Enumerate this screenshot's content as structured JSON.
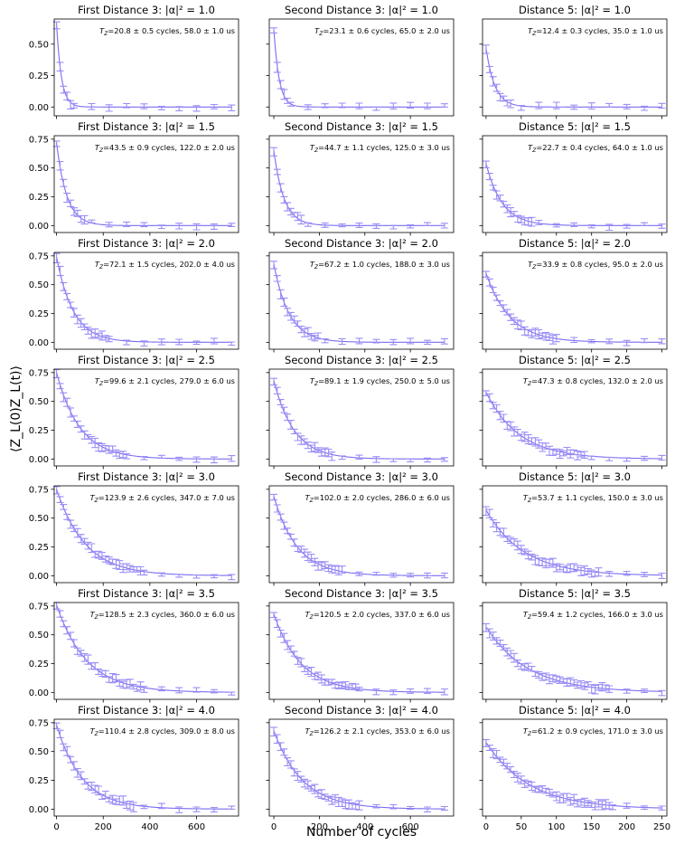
{
  "figure": {
    "ylabel": "⟨Z_L(0)Z_L(t)⟩",
    "xlabel": "Number of cycles",
    "colors": {
      "data": "#9a8ff5",
      "fit": "#7b6cf0",
      "axis": "#000000"
    }
  },
  "chart_data": {
    "type": "scatter",
    "columns": [
      {
        "prefix": "First Distance 3",
        "xlim": [
          -10,
          780
        ],
        "xticks": [
          0,
          200,
          400,
          600
        ],
        "xmax": 750
      },
      {
        "prefix": "Second Distance 3",
        "xlim": [
          -20,
          790
        ],
        "xticks": [
          0,
          200,
          400,
          600
        ],
        "xmax": 750
      },
      {
        "prefix": "Distance 5",
        "xlim": [
          -5,
          257
        ],
        "xticks": [
          0,
          50,
          100,
          150,
          200,
          250
        ],
        "xmax": 250
      }
    ],
    "rows": [
      {
        "alpha2": "1.0",
        "ylim": [
          -0.07,
          0.7
        ],
        "yticks": [
          "0.00",
          "0.25",
          "0.50"
        ],
        "ytick_values": [
          0,
          0.25,
          0.5
        ]
      },
      {
        "alpha2": "1.5",
        "ylim": [
          -0.06,
          0.78
        ],
        "yticks": [
          "0.00",
          "0.25",
          "0.50",
          "0.75"
        ],
        "ytick_values": [
          0,
          0.25,
          0.5,
          0.75
        ]
      },
      {
        "alpha2": "2.0",
        "ylim": [
          -0.06,
          0.78
        ],
        "yticks": [
          "0.00",
          "0.25",
          "0.50",
          "0.75"
        ],
        "ytick_values": [
          0,
          0.25,
          0.5,
          0.75
        ]
      },
      {
        "alpha2": "2.5",
        "ylim": [
          -0.06,
          0.78
        ],
        "yticks": [
          "0.00",
          "0.25",
          "0.50",
          "0.75"
        ],
        "ytick_values": [
          0,
          0.25,
          0.5,
          0.75
        ]
      },
      {
        "alpha2": "3.0",
        "ylim": [
          -0.06,
          0.78
        ],
        "yticks": [
          "0.00",
          "0.25",
          "0.50",
          "0.75"
        ],
        "ytick_values": [
          0,
          0.25,
          0.5,
          0.75
        ]
      },
      {
        "alpha2": "3.5",
        "ylim": [
          -0.06,
          0.78
        ],
        "yticks": [
          "0.00",
          "0.25",
          "0.50",
          "0.75"
        ],
        "ytick_values": [
          0,
          0.25,
          0.5,
          0.75
        ]
      },
      {
        "alpha2": "4.0",
        "ylim": [
          -0.06,
          0.78
        ],
        "yticks": [
          "0.00",
          "0.25",
          "0.50",
          "0.75"
        ],
        "ytick_values": [
          0,
          0.25,
          0.5,
          0.75
        ]
      }
    ],
    "panels": [
      [
        {
          "title": "First Distance 3: |α|² = 1.0",
          "annotation": "=20.8 ± 0.5 cycles, 58.0 ± 1.0 us",
          "a0": 0.66,
          "tau": 20.8
        },
        {
          "title": "Second Distance 3: |α|² = 1.0",
          "annotation": "=23.1 ± 0.6 cycles, 65.0 ± 2.0 us",
          "a0": 0.62,
          "tau": 23.1
        },
        {
          "title": "Distance 5: |α|² = 1.0",
          "annotation": "=12.4 ± 0.3 cycles, 35.0 ± 1.0 us",
          "a0": 0.47,
          "tau": 12.4
        }
      ],
      [
        {
          "title": "First Distance 3: |α|² = 1.5",
          "annotation": "=43.5 ± 0.9 cycles, 122.0 ± 2.0 us",
          "a0": 0.72,
          "tau": 43.5
        },
        {
          "title": "Second Distance 3: |α|² = 1.5",
          "annotation": "=44.7 ± 1.1 cycles, 125.0 ± 3.0 us",
          "a0": 0.65,
          "tau": 44.7
        },
        {
          "title": "Distance 5: |α|² = 1.5",
          "annotation": "=22.7 ± 0.4 cycles, 64.0 ± 1.0 us",
          "a0": 0.54,
          "tau": 22.7
        }
      ],
      [
        {
          "title": "First Distance 3: |α|² = 2.0",
          "annotation": "=72.1 ± 1.5 cycles, 202.0 ± 4.0 us",
          "a0": 0.74,
          "tau": 72.1
        },
        {
          "title": "Second Distance 3: |α|² = 2.0",
          "annotation": "=67.2 ± 1.0 cycles, 188.0 ± 3.0 us",
          "a0": 0.68,
          "tau": 67.2
        },
        {
          "title": "Distance 5: |α|² = 2.0",
          "annotation": "=33.9 ± 0.8 cycles, 95.0 ± 2.0 us",
          "a0": 0.6,
          "tau": 33.9
        }
      ],
      [
        {
          "title": "First Distance 3: |α|² = 2.5",
          "annotation": "=99.6 ± 2.1 cycles, 279.0 ± 6.0 us",
          "a0": 0.75,
          "tau": 99.6
        },
        {
          "title": "Second Distance 3: |α|² = 2.5",
          "annotation": "=89.1 ± 1.9 cycles, 250.0 ± 5.0 us",
          "a0": 0.68,
          "tau": 89.1
        },
        {
          "title": "Distance 5: |α|² = 2.5",
          "annotation": "=47.3 ± 0.8 cycles, 132.0 ± 2.0 us",
          "a0": 0.58,
          "tau": 47.3
        }
      ],
      [
        {
          "title": "First Distance 3: |α|² = 3.0",
          "annotation": "=123.9 ± 2.6 cycles, 347.0 ± 7.0 us",
          "a0": 0.75,
          "tau": 123.9
        },
        {
          "title": "Second Distance 3: |α|² = 3.0",
          "annotation": "=102.0 ± 2.0 cycles, 286.0 ± 6.0 us",
          "a0": 0.69,
          "tau": 102.0
        },
        {
          "title": "Distance 5: |α|² = 3.0",
          "annotation": "=53.7 ± 1.1 cycles, 150.0 ± 3.0 us",
          "a0": 0.57,
          "tau": 53.7
        }
      ],
      [
        {
          "title": "First Distance 3: |α|² = 3.5",
          "annotation": "=128.5 ± 2.3 cycles, 360.0 ± 6.0 us",
          "a0": 0.76,
          "tau": 128.5
        },
        {
          "title": "Second Distance 3: |α|² = 3.5",
          "annotation": "=120.5 ± 2.0 cycles, 337.0 ± 6.0 us",
          "a0": 0.68,
          "tau": 120.5
        },
        {
          "title": "Distance 5: |α|² = 3.5",
          "annotation": "=59.4 ± 1.2 cycles, 166.0 ± 3.0 us",
          "a0": 0.57,
          "tau": 59.4
        }
      ],
      [
        {
          "title": "First Distance 3: |α|² = 4.0",
          "annotation": "=110.4 ± 2.8 cycles, 309.0 ± 8.0 us",
          "a0": 0.73,
          "tau": 110.4
        },
        {
          "title": "Second Distance 3: |α|² = 4.0",
          "annotation": "=126.2 ± 2.1 cycles, 353.0 ± 6.0 us",
          "a0": 0.68,
          "tau": 126.2
        },
        {
          "title": "Distance 5: |α|² = 4.0",
          "annotation": "=61.2 ± 0.9 cycles, 171.0 ± 3.0 us",
          "a0": 0.58,
          "tau": 61.2
        }
      ]
    ]
  }
}
